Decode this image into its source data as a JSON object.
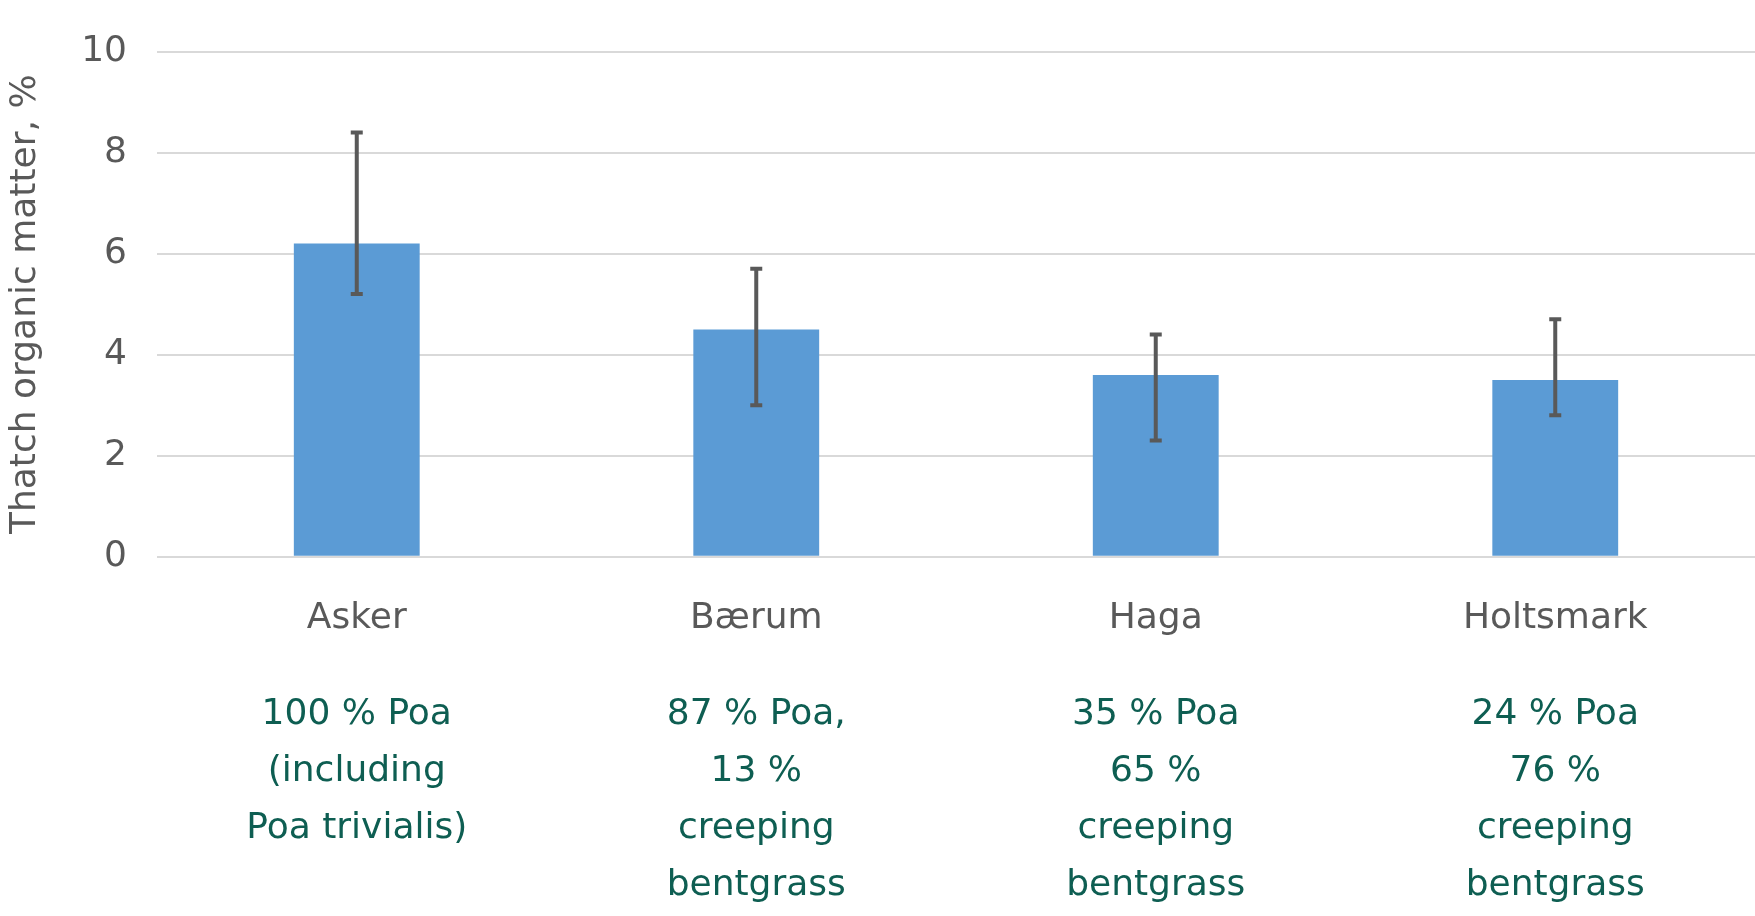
{
  "chart_data": {
    "type": "bar",
    "ylabel": "Thatch organic matter, %",
    "categories": [
      "Asker",
      "Bærum",
      "Haga",
      "Holtsmark"
    ],
    "values": [
      6.2,
      4.5,
      3.6,
      3.5
    ],
    "errors": [
      [
        5.2,
        8.4
      ],
      [
        3.0,
        5.7
      ],
      [
        2.3,
        4.4
      ],
      [
        2.8,
        4.7
      ]
    ],
    "color": "#5b9bd5",
    "ylim": [
      0,
      10
    ],
    "yticks": [
      0,
      2,
      4,
      6,
      8,
      10
    ],
    "grid": "y",
    "legend": false,
    "annotations": [
      "100 % Poa\n(including\nPoa trivialis)",
      "87 % Poa,\n13 %\ncreeping\nbentgrass",
      "35 % Poa\n65 %\ncreeping\nbentgrass",
      "24 % Poa\n76 %\ncreeping\nbentgrass"
    ]
  }
}
